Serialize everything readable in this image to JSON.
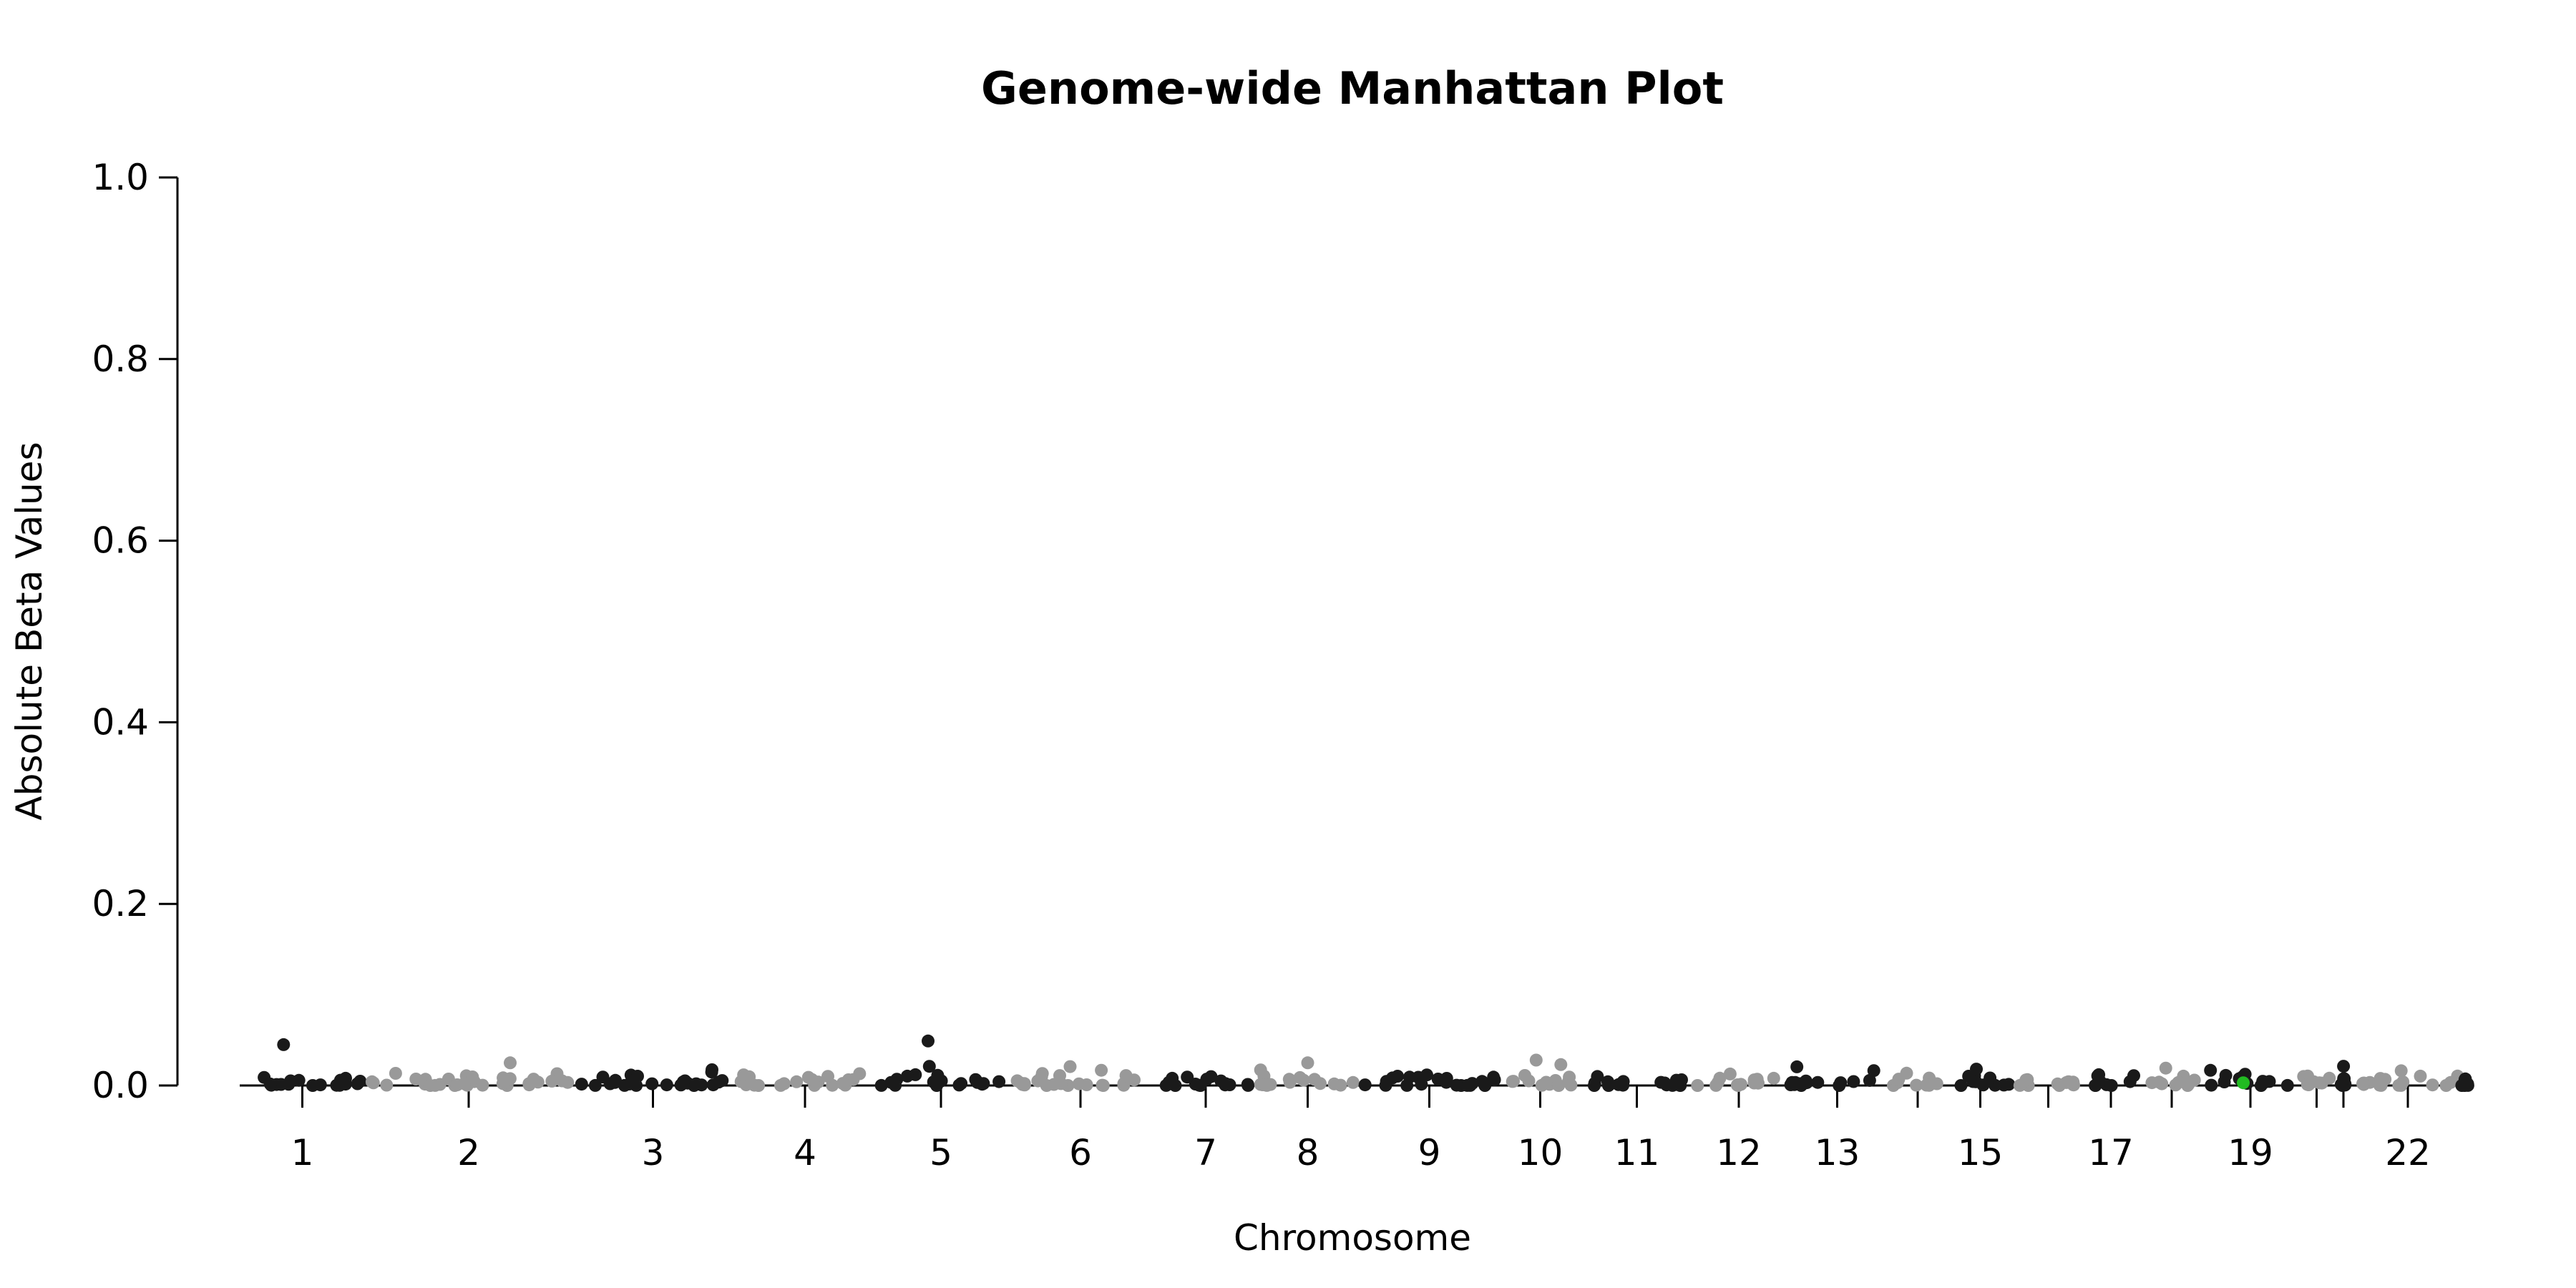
{
  "chart_data": {
    "type": "scatter",
    "title": "Genome-wide Manhattan Plot",
    "xlabel": "Chromosome",
    "ylabel": "Absolute Beta Values",
    "ylim": [
      0,
      1.0
    ],
    "y_ticks": [
      {
        "value": 0.0,
        "label": "0.0"
      },
      {
        "value": 0.2,
        "label": "0.2"
      },
      {
        "value": 0.4,
        "label": "0.4"
      },
      {
        "value": 0.6,
        "label": "0.6"
      },
      {
        "value": 0.8,
        "label": "0.8"
      },
      {
        "value": 1.0,
        "label": "1.0"
      }
    ],
    "chromosome_labels": [
      "1",
      "2",
      "3",
      "4",
      "5",
      "6",
      "7",
      "8",
      "9",
      "10",
      "11",
      "12",
      "13",
      "15",
      "17",
      "19",
      "22"
    ],
    "grid": false,
    "legend": "none",
    "colors": {
      "odd": "#1a1a1a",
      "even": "#999999",
      "highlight": "#22bb22"
    },
    "highlight_chromosome": "19",
    "peaks": [
      {
        "chromosome": "1",
        "beta": 0.045
      },
      {
        "chromosome": "2",
        "beta": 0.025
      },
      {
        "chromosome": "5",
        "beta": 0.049
      },
      {
        "chromosome": "8",
        "beta": 0.025
      },
      {
        "chromosome": "10",
        "beta": 0.028
      },
      {
        "chromosome": "10",
        "beta": 0.023
      }
    ]
  }
}
